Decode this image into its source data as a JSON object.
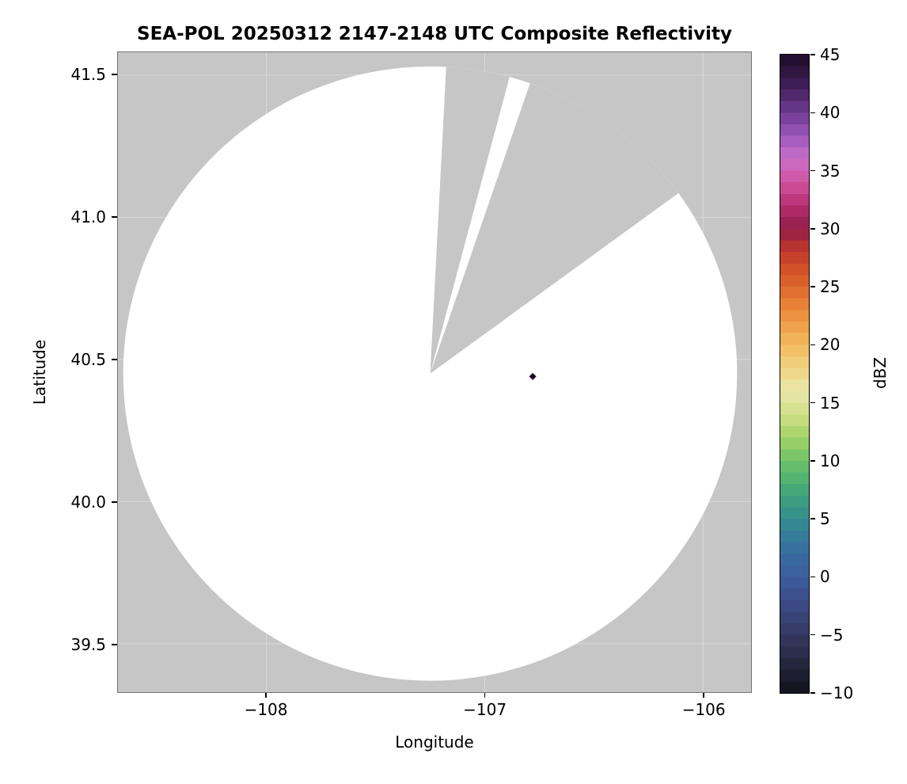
{
  "figure": {
    "title": "SEA-POL 20250312 2147-2148 UTC Composite Reflectivity",
    "xlabel": "Longitude",
    "ylabel": "Latitude"
  },
  "axes": {
    "x_tick_labels": [
      "−108",
      "−107",
      "−106"
    ],
    "y_tick_labels": [
      "41.5",
      "41.0",
      "40.5",
      "40.0",
      "39.5"
    ]
  },
  "colorbar": {
    "label": "dBZ",
    "min": -10,
    "max": 45,
    "tick_values": [
      45,
      40,
      35,
      30,
      25,
      20,
      15,
      10,
      5,
      0,
      -5,
      -10
    ],
    "tick_labels": [
      "45",
      "40",
      "35",
      "30",
      "25",
      "20",
      "15",
      "10",
      "5",
      "0",
      "−5",
      "−10"
    ],
    "stops": [
      [
        45,
        "#1c0b26"
      ],
      [
        42,
        "#45215e"
      ],
      [
        40,
        "#6f3b94"
      ],
      [
        38,
        "#9c55bb"
      ],
      [
        36,
        "#cb6fca"
      ],
      [
        34,
        "#d1539f"
      ],
      [
        32,
        "#b52e6f"
      ],
      [
        30,
        "#931c49"
      ],
      [
        28,
        "#c13a2a"
      ],
      [
        26,
        "#d65828"
      ],
      [
        24,
        "#e47832"
      ],
      [
        22,
        "#ee9a44"
      ],
      [
        20,
        "#f3ba5e"
      ],
      [
        18,
        "#f1d381"
      ],
      [
        16,
        "#e9e8ad"
      ],
      [
        14,
        "#cfe085"
      ],
      [
        12,
        "#a3d368"
      ],
      [
        10,
        "#6ec368"
      ],
      [
        8,
        "#4aad74"
      ],
      [
        6,
        "#389884"
      ],
      [
        4,
        "#338196"
      ],
      [
        2,
        "#386ba0"
      ],
      [
        0,
        "#3c5d9e"
      ],
      [
        -2,
        "#3c4d88"
      ],
      [
        -4,
        "#37406e"
      ],
      [
        -6,
        "#2e3152"
      ],
      [
        -8,
        "#222338"
      ],
      [
        -10,
        "#10101a"
      ]
    ]
  },
  "chart_data": {
    "type": "heatmap",
    "title": "SEA-POL 20250312 2147-2148 UTC Composite Reflectivity",
    "xlabel": "Longitude",
    "ylabel": "Latitude",
    "xlim": [
      -108.68,
      -105.78
    ],
    "x_ticks": [
      -108,
      -107,
      -106
    ],
    "ylim": [
      39.33,
      41.58
    ],
    "y_ticks": [
      41.5,
      41.0,
      40.5,
      40.0,
      39.5
    ],
    "grid": true,
    "colorbar_label": "dBZ",
    "colorbar_range": [
      -10,
      45
    ],
    "colorbar_tick_step": 5,
    "no_data_color": "#c6c6c6",
    "coverage_color": "#ffffff",
    "radar": {
      "center_lon": -107.25,
      "center_lat": 40.45,
      "coverage_radius_deg_lat": 1.08
    },
    "blocked_sectors_azimuth_deg": [
      [
        3,
        15
      ],
      [
        19,
        54
      ]
    ],
    "echoes": [
      {
        "lon": -106.78,
        "lat": 40.44,
        "dbz": 45
      }
    ]
  }
}
